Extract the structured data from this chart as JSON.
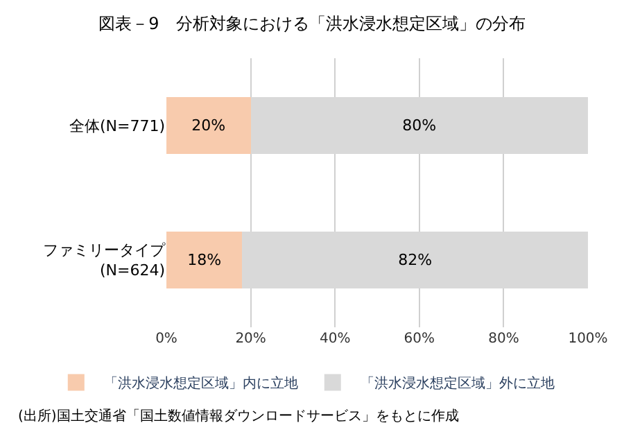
{
  "chart_data": {
    "type": "bar",
    "orientation": "horizontal",
    "stacked": true,
    "title": "図表－9　分析対象における「洪水浸水想定区域」の分布",
    "categories": [
      "全体(N=771)",
      "ファミリータイプ\n(N=624)"
    ],
    "series": [
      {
        "name": "「洪水浸水想定区域」内に立地",
        "color": "#f8cbad",
        "values": [
          20,
          18
        ],
        "value_labels": [
          "20%",
          "18%"
        ]
      },
      {
        "name": "「洪水浸水想定区域」外に立地",
        "color": "#d9d9d9",
        "values": [
          80,
          82
        ],
        "value_labels": [
          "80%",
          "82%"
        ]
      }
    ],
    "xlim": [
      0,
      100
    ],
    "xticks": [
      {
        "value": 0,
        "label": "0%"
      },
      {
        "value": 20,
        "label": "20%"
      },
      {
        "value": 40,
        "label": "40%"
      },
      {
        "value": 60,
        "label": "60%"
      },
      {
        "value": 80,
        "label": "80%"
      },
      {
        "value": 100,
        "label": "100%"
      }
    ],
    "data_labels": true,
    "grid": "x",
    "legend": "bottom",
    "annotations": [
      "(出所)国土交通省「国土数値情報ダウンロードサービス」をもとに作成"
    ]
  }
}
